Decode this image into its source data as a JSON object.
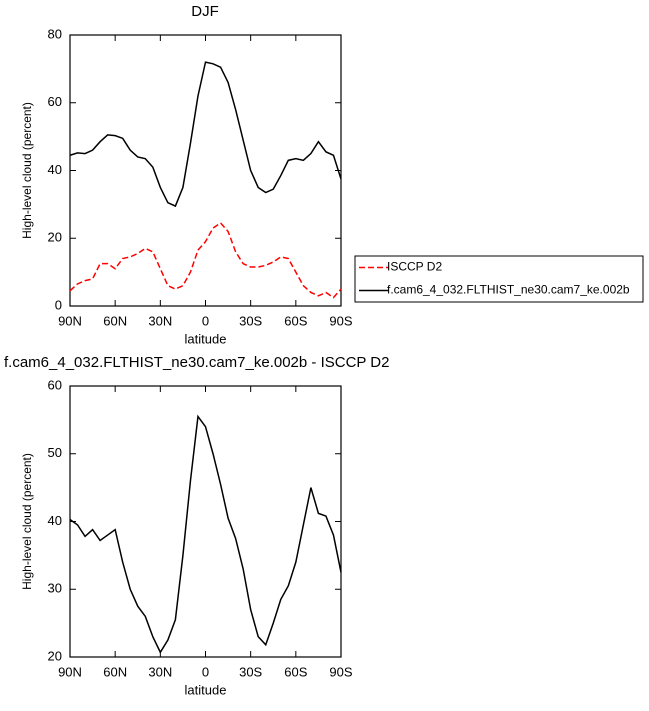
{
  "chart_data": [
    {
      "type": "line",
      "title": "DJF",
      "xlabel": "latitude",
      "ylabel": "High-level cloud (percent)",
      "x": [
        90,
        85,
        80,
        75,
        70,
        65,
        60,
        55,
        50,
        45,
        40,
        35,
        30,
        25,
        20,
        15,
        10,
        5,
        0,
        -5,
        -10,
        -15,
        -20,
        -25,
        -30,
        -35,
        -40,
        -45,
        -50,
        -55,
        -60,
        -65,
        -70,
        -75,
        -80,
        -85,
        -90
      ],
      "xlim": [
        90,
        -90
      ],
      "xticks": [
        {
          "value": 90,
          "label": "90N"
        },
        {
          "value": 60,
          "label": "60N"
        },
        {
          "value": 30,
          "label": "30N"
        },
        0,
        {
          "value": -30,
          "label": "30S"
        },
        {
          "value": -60,
          "label": "60S"
        },
        {
          "value": -90,
          "label": "90S"
        }
      ],
      "ylim": [
        0,
        80
      ],
      "yticks": [
        0,
        20,
        40,
        60,
        80
      ],
      "legend": "right",
      "series": [
        {
          "name": "ISCCP D2",
          "color": "#ff0000",
          "line_style": "dashed",
          "values": [
            4.5,
            6.5,
            7.5,
            8,
            12.5,
            12.5,
            11,
            14,
            14.5,
            15.5,
            17,
            16,
            11,
            6,
            5,
            6,
            10,
            16.5,
            19,
            23,
            24.5,
            22,
            16,
            12.5,
            11.5,
            11.5,
            12,
            13,
            14.5,
            14,
            10,
            6,
            4,
            3,
            4,
            2.5,
            5
          ]
        },
        {
          "name": "f.cam6_4_032.FLTHIST_ne30.cam7_ke.002b",
          "color": "#000000",
          "line_style": "solid",
          "values": [
            44.5,
            45.2,
            45,
            46,
            48.5,
            50.5,
            50.3,
            49.5,
            46,
            44,
            43.5,
            41,
            35,
            30.5,
            29.5,
            35,
            48,
            62,
            72,
            71.5,
            70.5,
            66,
            58,
            49,
            40,
            35,
            33.5,
            34.5,
            38.5,
            43,
            43.5,
            43,
            45,
            48.5,
            45.5,
            44.5,
            37.5
          ]
        }
      ]
    },
    {
      "type": "line",
      "title": "f.cam6_4_032.FLTHIST_ne30.cam7_ke.002b - ISCCP D2",
      "xlabel": "latitude",
      "ylabel": "High-level cloud (percent)",
      "x": [
        90,
        85,
        80,
        75,
        70,
        65,
        60,
        55,
        50,
        45,
        40,
        35,
        30,
        25,
        20,
        15,
        10,
        5,
        0,
        -5,
        -10,
        -15,
        -20,
        -25,
        -30,
        -35,
        -40,
        -45,
        -50,
        -55,
        -60,
        -65,
        -70,
        -75,
        -80,
        -85,
        -90
      ],
      "xlim": [
        90,
        -90
      ],
      "xticks": [
        {
          "value": 90,
          "label": "90N"
        },
        {
          "value": 60,
          "label": "60N"
        },
        {
          "value": 30,
          "label": "30N"
        },
        0,
        {
          "value": -30,
          "label": "30S"
        },
        {
          "value": -60,
          "label": "60S"
        },
        {
          "value": -90,
          "label": "90S"
        }
      ],
      "ylim": [
        20,
        60
      ],
      "yticks": [
        20,
        30,
        40,
        50,
        60
      ],
      "series": [
        {
          "color": "#000000",
          "line_style": "solid",
          "values": [
            40.3,
            39.5,
            37.8,
            38.8,
            37.2,
            38,
            38.8,
            34,
            30,
            27.5,
            26,
            23,
            20.7,
            22.5,
            25.5,
            35,
            46,
            55.5,
            54,
            50,
            45.5,
            40.5,
            37.5,
            33,
            27,
            23,
            21.8,
            25,
            28.5,
            30.5,
            34,
            39.5,
            45,
            41.2,
            40.8,
            38,
            32.5
          ]
        }
      ]
    }
  ]
}
